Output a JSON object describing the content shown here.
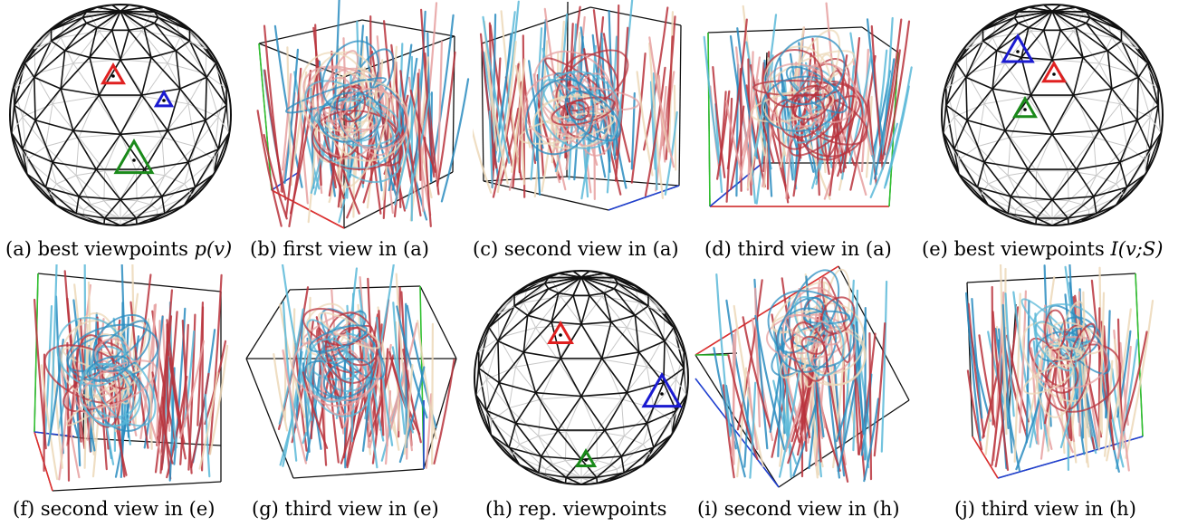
{
  "figure": {
    "panels": [
      {
        "id": "a",
        "kind": "sphere",
        "caption": "(a) best viewpoints ",
        "math": "p(v)"
      },
      {
        "id": "b",
        "kind": "streamlines",
        "caption": "(b) first view in (a)"
      },
      {
        "id": "c",
        "kind": "streamlines",
        "caption": "(c) second view in (a)"
      },
      {
        "id": "d",
        "kind": "streamlines",
        "caption": "(d) third view in (a)"
      },
      {
        "id": "e",
        "kind": "sphere",
        "caption": "(e) best viewpoints ",
        "math": "I(v;S)"
      },
      {
        "id": "f",
        "kind": "streamlines",
        "caption": "(f) second view in (e)"
      },
      {
        "id": "g",
        "kind": "streamlines",
        "caption": "(g) third view in (e)"
      },
      {
        "id": "h",
        "kind": "sphere",
        "caption": "(h) rep. viewpoints"
      },
      {
        "id": "i",
        "kind": "streamlines",
        "caption": "(i) second view in (h)"
      },
      {
        "id": "j",
        "kind": "streamlines",
        "caption": "(j) third view in (h)"
      }
    ],
    "colors": {
      "mesh": "#111111",
      "mesh_back": "#c8c8c8",
      "marker_red": "#e02020",
      "marker_blue": "#1a1ad0",
      "marker_green": "#1a8a1a",
      "axis_red": "#e03030",
      "axis_green": "#30c030",
      "axis_blue": "#2040d0",
      "stream_red": "#b8323c",
      "stream_pink": "#e6a0a0",
      "stream_cream": "#ecd8b8",
      "stream_cyan": "#5ab8d8",
      "stream_blue": "#2a8cc0"
    }
  }
}
